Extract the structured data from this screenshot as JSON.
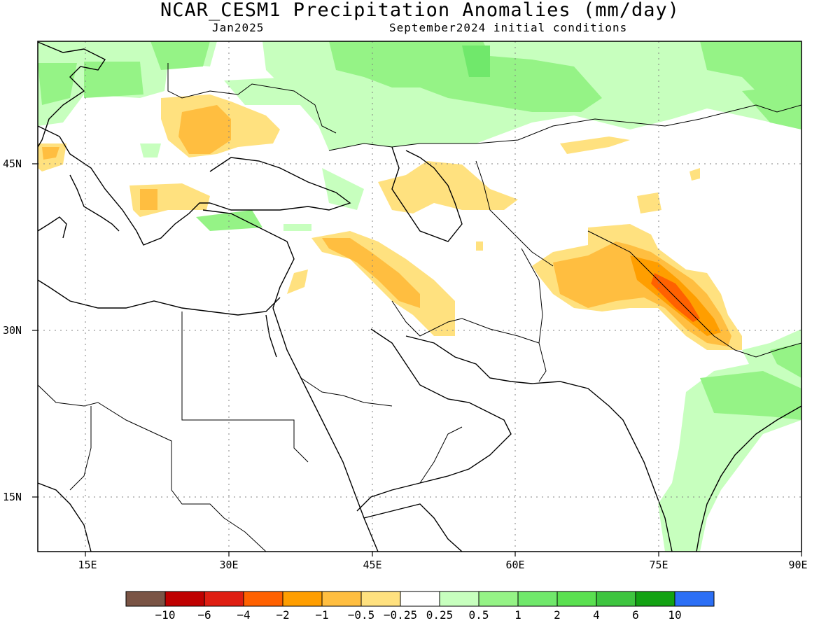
{
  "title": "NCAR_CESM1 Precipitation Anomalies (mm/day)",
  "subtitle_left": "Jan2025",
  "subtitle_right": "September2024 initial conditions",
  "map": {
    "lon_range": [
      10,
      90
    ],
    "lat_range": [
      10,
      56
    ],
    "grid": true,
    "lat_labels": [
      "45N",
      "30N",
      "15N"
    ],
    "lat_values": [
      45,
      30,
      15
    ],
    "lon_labels": [
      "15E",
      "30E",
      "45E",
      "60E",
      "75E",
      "90E"
    ],
    "lon_values": [
      15,
      30,
      45,
      60,
      75,
      90
    ]
  },
  "colorbar": {
    "colors": [
      "#7a5445",
      "#bf0000",
      "#df1e12",
      "#ff6100",
      "#ff9e00",
      "#ffbe40",
      "#ffe17f",
      "#ffffff",
      "#c7ffbe",
      "#95f386",
      "#70e86b",
      "#5ae050",
      "#3ec53f",
      "#13a213",
      "#2c6ff5"
    ],
    "labels": [
      "−10",
      "−6",
      "−4",
      "−2",
      "−1",
      "−0.5",
      "−0.25",
      "0.25",
      "0.5",
      "1",
      "2",
      "4",
      "6",
      "10"
    ]
  }
}
